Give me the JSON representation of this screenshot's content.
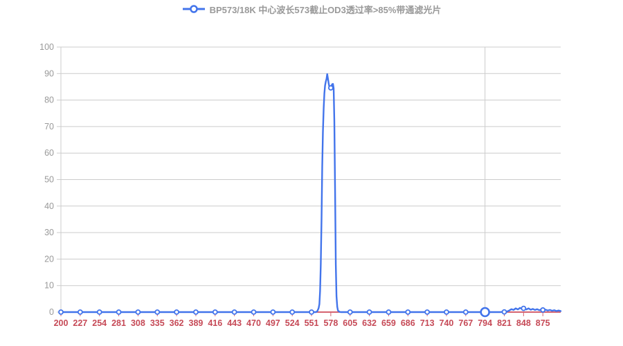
{
  "legend": {
    "label": "BP573/18K 中心波长573截止OD3透过率>85%带通滤光片"
  },
  "colors": {
    "line": "#4274eb",
    "marker_fill": "#ffffff",
    "x_label": "#c64a57",
    "x_axis_line": "#d5626f",
    "y_label": "#999999",
    "grid_line": "#cccccc",
    "hover_line": "#cccccc",
    "legend_text": "#999999",
    "background": "#ffffff"
  },
  "chart_data": {
    "type": "line",
    "title": "BP573/18K 中心波长573截止OD3透过率>85%带通滤光片",
    "legend_entries": [
      "BP573/18K 中心波长573截止OD3透过率>85%带通滤光片"
    ],
    "legend_position": "top-center",
    "xlabel": "",
    "ylabel": "",
    "x_range": [
      200,
      900
    ],
    "ylim": [
      0,
      100
    ],
    "y_ticks": [
      0,
      10,
      20,
      30,
      40,
      50,
      60,
      70,
      80,
      90,
      100
    ],
    "x_tick_labels": [
      200,
      227,
      254,
      281,
      308,
      335,
      362,
      389,
      416,
      443,
      470,
      497,
      524,
      551,
      578,
      605,
      632,
      659,
      686,
      713,
      740,
      767,
      794,
      821,
      848,
      875
    ],
    "grid": "horizontal",
    "hover_line_x": 794,
    "highlighted_point": {
      "x": 794,
      "value": 0
    },
    "series": [
      {
        "name": "BP573/18K 中心波长573截止OD3透过率>85%带通滤光片",
        "symbol": "circle",
        "symbols_at_tick_labels_only": true,
        "peak_center": 573,
        "peak_max": 89.8,
        "points": [
          [
            200,
            0
          ],
          [
            250,
            0
          ],
          [
            300,
            0
          ],
          [
            350,
            0
          ],
          [
            400,
            0
          ],
          [
            450,
            0
          ],
          [
            500,
            0
          ],
          [
            540,
            0
          ],
          [
            552,
            0
          ],
          [
            557,
            0
          ],
          [
            559,
            0.3
          ],
          [
            561,
            1.5
          ],
          [
            562,
            3
          ],
          [
            563,
            8
          ],
          [
            564,
            18
          ],
          [
            565,
            35
          ],
          [
            566,
            55
          ],
          [
            567,
            68
          ],
          [
            568,
            77
          ],
          [
            569,
            82.5
          ],
          [
            570,
            85.5
          ],
          [
            571,
            87
          ],
          [
            572,
            88
          ],
          [
            573,
            89.8
          ],
          [
            574,
            88
          ],
          [
            575,
            86.3
          ],
          [
            576,
            85
          ],
          [
            577,
            84.4
          ],
          [
            578,
            84.6
          ],
          [
            579,
            85.4
          ],
          [
            580,
            86
          ],
          [
            581,
            86.1
          ],
          [
            582,
            84.5
          ],
          [
            583,
            72
          ],
          [
            584,
            45
          ],
          [
            585,
            18
          ],
          [
            586,
            6
          ],
          [
            587,
            2
          ],
          [
            588,
            0.6
          ],
          [
            590,
            0.1
          ],
          [
            592,
            0
          ],
          [
            600,
            0
          ],
          [
            650,
            0
          ],
          [
            700,
            0
          ],
          [
            750,
            0
          ],
          [
            790,
            0
          ],
          [
            794,
            0
          ],
          [
            800,
            0
          ],
          [
            815,
            0
          ],
          [
            824,
            0.1
          ],
          [
            828,
            0.6
          ],
          [
            831,
            1.1
          ],
          [
            834,
            0.8
          ],
          [
            837,
            1.4
          ],
          [
            840,
            1.0
          ],
          [
            843,
            1.6
          ],
          [
            846,
            1.2
          ],
          [
            849,
            1.5
          ],
          [
            852,
            1.0
          ],
          [
            855,
            1.4
          ],
          [
            858,
            0.9
          ],
          [
            861,
            1.2
          ],
          [
            864,
            0.8
          ],
          [
            867,
            1.1
          ],
          [
            870,
            0.7
          ],
          [
            873,
            1.0
          ],
          [
            876,
            0.7
          ],
          [
            879,
            0.9
          ],
          [
            882,
            0.6
          ],
          [
            885,
            0.8
          ],
          [
            888,
            0.5
          ],
          [
            891,
            0.7
          ],
          [
            894,
            0.4
          ],
          [
            897,
            0.6
          ],
          [
            900,
            0.4
          ]
        ]
      }
    ]
  }
}
